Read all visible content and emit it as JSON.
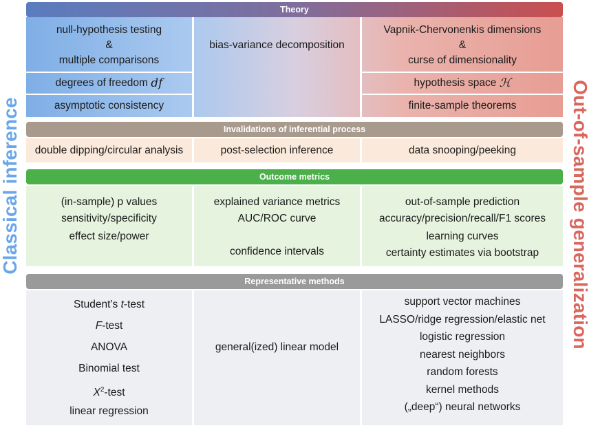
{
  "side_labels": {
    "left": "Classical inference",
    "right": "Out-of-sample generalization"
  },
  "theory": {
    "header": "Theory",
    "col1": {
      "line1": "null-hypothesis testing",
      "line2": "&",
      "line3": "multiple comparisons",
      "row2_text": "degrees of freedom ",
      "row2_symbol": "df",
      "row3": "asymptotic consistency"
    },
    "col2": {
      "line1": "bias-variance decomposition"
    },
    "col3": {
      "line1": "Vapnik-Chervonenkis dimensions",
      "line2": "&",
      "line3": "curse of dimensionality",
      "row2_text": "hypothesis space ",
      "row2_symbol": "ℋ",
      "row3": "finite-sample theorems"
    }
  },
  "invalidations": {
    "header": "Invalidations of inferential process",
    "items": [
      "double dipping/circular analysis",
      "post-selection inference",
      "data snooping/peeking"
    ]
  },
  "outcome": {
    "header": "Outcome metrics",
    "col1": [
      "(in-sample) p values",
      "sensitivity/specificity",
      "effect size/power"
    ],
    "col2": {
      "top": [
        "explained variance metrics",
        "AUC/ROC curve"
      ],
      "bottom": "confidence intervals"
    },
    "col3": [
      "out-of-sample prediction",
      "accuracy/precision/recall/F1 scores",
      "learning curves",
      "certainty estimates via bootstrap"
    ]
  },
  "methods": {
    "header": "Representative methods",
    "col1": {
      "student_pre": "Student’s ",
      "student_ital": "t",
      "student_post": "-test",
      "f_ital": "F",
      "f_post": "-test",
      "anova": "ANOVA",
      "binomial": "Binomial test",
      "chi_ital": "X",
      "chi_sup": "2",
      "chi_post": "-test",
      "linreg": "linear regression"
    },
    "col2": "general(ized) linear model",
    "col3": [
      "support vector machines",
      "LASSO/ridge regression/elastic net",
      "logistic regression",
      "nearest neighbors",
      "random forests",
      "kernel methods",
      "(„deep“) neural networks"
    ]
  },
  "colors": {
    "theory_bar_start": "#5a7cbf",
    "theory_bar_end": "#c94f4f",
    "blue_cell": "#8fb6e8",
    "red_cell": "#eba096",
    "invalid_bar": "#a89a8c",
    "invalid_cell": "#fbeadb",
    "outcome_bar": "#4bb04a",
    "outcome_cell": "#e6f3df",
    "methods_bar": "#9a9a9a",
    "methods_cell": "#eeeff2",
    "left_label": "#6aa6ea",
    "right_label": "#d9675d"
  }
}
